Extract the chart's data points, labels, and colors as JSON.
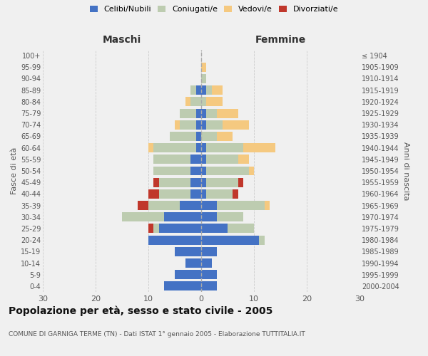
{
  "age_groups": [
    "0-4",
    "5-9",
    "10-14",
    "15-19",
    "20-24",
    "25-29",
    "30-34",
    "35-39",
    "40-44",
    "45-49",
    "50-54",
    "55-59",
    "60-64",
    "65-69",
    "70-74",
    "75-79",
    "80-84",
    "85-89",
    "90-94",
    "95-99",
    "100+"
  ],
  "birth_years": [
    "2000-2004",
    "1995-1999",
    "1990-1994",
    "1985-1989",
    "1980-1984",
    "1975-1979",
    "1970-1974",
    "1965-1969",
    "1960-1964",
    "1955-1959",
    "1950-1954",
    "1945-1949",
    "1940-1944",
    "1935-1939",
    "1930-1934",
    "1925-1929",
    "1920-1924",
    "1915-1919",
    "1910-1914",
    "1905-1909",
    "≤ 1904"
  ],
  "maschi": {
    "celibi": [
      7,
      5,
      3,
      5,
      10,
      8,
      7,
      4,
      2,
      2,
      2,
      2,
      1,
      1,
      1,
      1,
      0,
      1,
      0,
      0,
      0
    ],
    "coniugati": [
      0,
      0,
      0,
      0,
      0,
      1,
      8,
      6,
      6,
      6,
      7,
      7,
      8,
      5,
      3,
      3,
      2,
      1,
      0,
      0,
      0
    ],
    "vedovi": [
      0,
      0,
      0,
      0,
      0,
      0,
      0,
      0,
      0,
      0,
      0,
      0,
      1,
      0,
      1,
      0,
      1,
      0,
      0,
      0,
      0
    ],
    "divorziati": [
      0,
      0,
      0,
      0,
      0,
      1,
      0,
      2,
      2,
      1,
      0,
      0,
      0,
      0,
      0,
      0,
      0,
      0,
      0,
      0,
      0
    ]
  },
  "femmine": {
    "nubili": [
      3,
      3,
      2,
      3,
      11,
      5,
      3,
      3,
      1,
      1,
      1,
      1,
      1,
      0,
      1,
      1,
      0,
      1,
      0,
      0,
      0
    ],
    "coniugate": [
      0,
      0,
      0,
      0,
      1,
      5,
      5,
      9,
      5,
      6,
      8,
      6,
      7,
      3,
      3,
      2,
      1,
      1,
      1,
      0,
      0
    ],
    "vedove": [
      0,
      0,
      0,
      0,
      0,
      0,
      0,
      1,
      0,
      0,
      1,
      2,
      6,
      3,
      5,
      4,
      3,
      2,
      0,
      1,
      0
    ],
    "divorziate": [
      0,
      0,
      0,
      0,
      0,
      0,
      0,
      0,
      1,
      1,
      0,
      0,
      0,
      0,
      0,
      0,
      0,
      0,
      0,
      0,
      0
    ]
  },
  "colors": {
    "celibi": "#4472C4",
    "coniugati": "#BDCCB0",
    "vedovi": "#F5C980",
    "divorziati": "#C0372B"
  },
  "title": "Popolazione per età, sesso e stato civile - 2005",
  "subtitle": "COMUNE DI GARNIGA TERME (TN) - Dati ISTAT 1° gennaio 2005 - Elaborazione TUTTITALIA.IT",
  "xlabel_left": "Maschi",
  "xlabel_right": "Femmine",
  "ylabel_left": "Fasce di età",
  "ylabel_right": "Anni di nascita",
  "xlim": 30,
  "legend_labels": [
    "Celibi/Nubili",
    "Coniugati/e",
    "Vedovi/e",
    "Divorziati/e"
  ],
  "background_color": "#f0f0f0"
}
